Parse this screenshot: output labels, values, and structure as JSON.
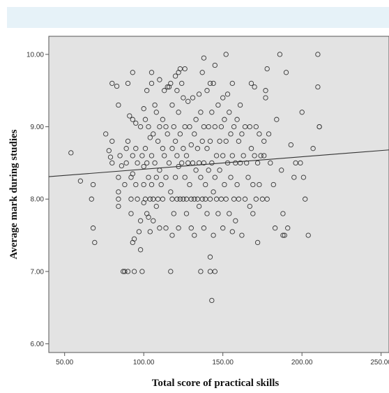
{
  "chart_data": {
    "type": "scatter",
    "title": "",
    "xlabel": "Total score of practical skills",
    "ylabel": "Average  mark during studies",
    "xlim": [
      40,
      255
    ],
    "ylim": [
      5.88,
      10.25
    ],
    "x_ticks": [
      50,
      100,
      150,
      200,
      250
    ],
    "x_tick_labels": [
      "50.00",
      "100.00",
      "150.00",
      "200.00",
      "250.00"
    ],
    "y_ticks": [
      6,
      7,
      8,
      9,
      10
    ],
    "y_tick_labels": [
      "6.00",
      "7.00",
      "8.00",
      "9.00",
      "10.00"
    ],
    "grid": false,
    "legend": "none",
    "colors": {
      "background": "#e3e3e3",
      "marker": "#333333",
      "fit_line": "#333333"
    },
    "fit_line": {
      "x": [
        40,
        255
      ],
      "y": [
        8.31,
        8.68
      ]
    },
    "points": [
      [
        54,
        8.64
      ],
      [
        60,
        8.25
      ],
      [
        67,
        8.0
      ],
      [
        68,
        8.2
      ],
      [
        68,
        7.6
      ],
      [
        69,
        7.4
      ],
      [
        76,
        8.9
      ],
      [
        78,
        8.67
      ],
      [
        79,
        8.58
      ],
      [
        80,
        9.6
      ],
      [
        80,
        8.5
      ],
      [
        80,
        8.8
      ],
      [
        83,
        9.56
      ],
      [
        84,
        9.3
      ],
      [
        84,
        8.3
      ],
      [
        84,
        8.1
      ],
      [
        84,
        8.0
      ],
      [
        84,
        7.9
      ],
      [
        85,
        8.6
      ],
      [
        86,
        8.46
      ],
      [
        87,
        7.0
      ],
      [
        88,
        8.2
      ],
      [
        88,
        7.0
      ],
      [
        89,
        8.7
      ],
      [
        89,
        8.5
      ],
      [
        90,
        9.6
      ],
      [
        90,
        8.8
      ],
      [
        90,
        7.0
      ],
      [
        91,
        9.15
      ],
      [
        92,
        8.3
      ],
      [
        92,
        8.0
      ],
      [
        92,
        7.8
      ],
      [
        93,
        9.75
      ],
      [
        93,
        9.1
      ],
      [
        93,
        8.6
      ],
      [
        93,
        8.35
      ],
      [
        93,
        7.4
      ],
      [
        94,
        7.45
      ],
      [
        94,
        7.0
      ],
      [
        95,
        9.05
      ],
      [
        95,
        8.7
      ],
      [
        95,
        8.2
      ],
      [
        96,
        8.5
      ],
      [
        96,
        8.0
      ],
      [
        97,
        7.55
      ],
      [
        98,
        9.0
      ],
      [
        98,
        7.7
      ],
      [
        98,
        7.3
      ],
      [
        99,
        8.6
      ],
      [
        99,
        7.0
      ],
      [
        100,
        9.25
      ],
      [
        100,
        8.45
      ],
      [
        100,
        8.2
      ],
      [
        100,
        7.95
      ],
      [
        101,
        9.1
      ],
      [
        101,
        8.7
      ],
      [
        101,
        8.0
      ],
      [
        102,
        9.5
      ],
      [
        102,
        8.5
      ],
      [
        102,
        7.8
      ],
      [
        103,
        9.0
      ],
      [
        103,
        8.3
      ],
      [
        103,
        7.75
      ],
      [
        104,
        8.85
      ],
      [
        104,
        8.0
      ],
      [
        104,
        7.55
      ],
      [
        105,
        9.75
      ],
      [
        105,
        9.6
      ],
      [
        105,
        8.6
      ],
      [
        105,
        8.2
      ],
      [
        106,
        8.9
      ],
      [
        106,
        8.0
      ],
      [
        106,
        7.7
      ],
      [
        107,
        9.3
      ],
      [
        107,
        8.5
      ],
      [
        108,
        9.2
      ],
      [
        108,
        8.3
      ],
      [
        108,
        7.9
      ],
      [
        109,
        8.8
      ],
      [
        109,
        8.0
      ],
      [
        110,
        9.65
      ],
      [
        110,
        9.0
      ],
      [
        110,
        8.4
      ],
      [
        110,
        7.6
      ],
      [
        111,
        8.2
      ],
      [
        112,
        9.1
      ],
      [
        112,
        8.7
      ],
      [
        112,
        8.0
      ],
      [
        113,
        9.5
      ],
      [
        113,
        8.6
      ],
      [
        114,
        9.0
      ],
      [
        114,
        8.3
      ],
      [
        114,
        7.6
      ],
      [
        115,
        9.55
      ],
      [
        115,
        8.9
      ],
      [
        116,
        9.55
      ],
      [
        116,
        8.5
      ],
      [
        117,
        9.6
      ],
      [
        117,
        8.1
      ],
      [
        117,
        7.0
      ],
      [
        118,
        9.3
      ],
      [
        118,
        8.7
      ],
      [
        118,
        8.0
      ],
      [
        118,
        7.5
      ],
      [
        119,
        9.0
      ],
      [
        119,
        7.8
      ],
      [
        120,
        9.7
      ],
      [
        120,
        8.8
      ],
      [
        120,
        8.3
      ],
      [
        121,
        9.5
      ],
      [
        121,
        8.6
      ],
      [
        121,
        8.0
      ],
      [
        122,
        9.75
      ],
      [
        122,
        9.2
      ],
      [
        122,
        8.45
      ],
      [
        122,
        7.6
      ],
      [
        123,
        9.8
      ],
      [
        123,
        8.9
      ],
      [
        123,
        8.0
      ],
      [
        124,
        9.6
      ],
      [
        124,
        8.5
      ],
      [
        125,
        9.4
      ],
      [
        125,
        8.7
      ],
      [
        125,
        8.0
      ],
      [
        126,
        9.8
      ],
      [
        126,
        9.0
      ],
      [
        126,
        8.3
      ],
      [
        127,
        8.6
      ],
      [
        127,
        8.0
      ],
      [
        127,
        7.8
      ],
      [
        128,
        9.35
      ],
      [
        128,
        8.5
      ],
      [
        129,
        9.0
      ],
      [
        129,
        8.2
      ],
      [
        130,
        8.75
      ],
      [
        130,
        8.0
      ],
      [
        130,
        7.6
      ],
      [
        131,
        9.4
      ],
      [
        131,
        8.5
      ],
      [
        132,
        8.9
      ],
      [
        132,
        8.0
      ],
      [
        132,
        7.5
      ],
      [
        133,
        9.1
      ],
      [
        133,
        8.4
      ],
      [
        134,
        8.7
      ],
      [
        134,
        8.0
      ],
      [
        135,
        9.45
      ],
      [
        135,
        8.5
      ],
      [
        135,
        7.9
      ],
      [
        136,
        9.2
      ],
      [
        136,
        8.3
      ],
      [
        136,
        7.0
      ],
      [
        137,
        9.75
      ],
      [
        137,
        8.8
      ],
      [
        137,
        8.0
      ],
      [
        138,
        9.95
      ],
      [
        138,
        9.0
      ],
      [
        138,
        8.5
      ],
      [
        138,
        7.6
      ],
      [
        139,
        8.2
      ],
      [
        139,
        8.0
      ],
      [
        140,
        9.5
      ],
      [
        140,
        8.7
      ],
      [
        140,
        7.8
      ],
      [
        141,
        9.0
      ],
      [
        141,
        8.4
      ],
      [
        142,
        9.6
      ],
      [
        142,
        8.8
      ],
      [
        142,
        8.0
      ],
      [
        142,
        7.2
      ],
      [
        142,
        7.0
      ],
      [
        143,
        6.6
      ],
      [
        143,
        9.2
      ],
      [
        143,
        8.5
      ],
      [
        144,
        9.6
      ],
      [
        144,
        8.1
      ],
      [
        144,
        7.5
      ],
      [
        145,
        9.85
      ],
      [
        145,
        9.0
      ],
      [
        145,
        8.3
      ],
      [
        145,
        7.0
      ],
      [
        146,
        8.6
      ],
      [
        146,
        8.0
      ],
      [
        147,
        9.3
      ],
      [
        147,
        7.8
      ],
      [
        148,
        8.8
      ],
      [
        148,
        8.4
      ],
      [
        149,
        9.0
      ],
      [
        149,
        8.0
      ],
      [
        150,
        9.4
      ],
      [
        150,
        8.6
      ],
      [
        150,
        7.6
      ],
      [
        151,
        9.1
      ],
      [
        151,
        8.2
      ],
      [
        152,
        10.0
      ],
      [
        152,
        8.8
      ],
      [
        152,
        8.0
      ],
      [
        153,
        9.45
      ],
      [
        153,
        8.5
      ],
      [
        154,
        9.2
      ],
      [
        154,
        7.8
      ],
      [
        155,
        8.9
      ],
      [
        155,
        8.3
      ],
      [
        156,
        9.6
      ],
      [
        156,
        8.6
      ],
      [
        156,
        7.55
      ],
      [
        157,
        9.0
      ],
      [
        157,
        8.0
      ],
      [
        158,
        8.5
      ],
      [
        158,
        7.7
      ],
      [
        159,
        9.1
      ],
      [
        159,
        8.2
      ],
      [
        160,
        8.8
      ],
      [
        160,
        8.0
      ],
      [
        161,
        9.3
      ],
      [
        161,
        8.5
      ],
      [
        162,
        8.9
      ],
      [
        162,
        7.5
      ],
      [
        163,
        8.6
      ],
      [
        164,
        9.0
      ],
      [
        164,
        8.0
      ],
      [
        165,
        8.5
      ],
      [
        166,
        8.3
      ],
      [
        167,
        9.0
      ],
      [
        167,
        7.9
      ],
      [
        168,
        9.6
      ],
      [
        168,
        8.7
      ],
      [
        169,
        8.2
      ],
      [
        169,
        7.8
      ],
      [
        170,
        9.55
      ],
      [
        170,
        8.6
      ],
      [
        171,
        9.0
      ],
      [
        171,
        8.0
      ],
      [
        172,
        8.5
      ],
      [
        172,
        7.4
      ],
      [
        173,
        8.9
      ],
      [
        173,
        8.2
      ],
      [
        174,
        8.6
      ],
      [
        175,
        8.0
      ],
      [
        176,
        8.8
      ],
      [
        176,
        8.6
      ],
      [
        177,
        9.5
      ],
      [
        177,
        9.4
      ],
      [
        178,
        9.8
      ],
      [
        178,
        8.0
      ],
      [
        179,
        8.9
      ],
      [
        180,
        8.5
      ],
      [
        182,
        8.2
      ],
      [
        183,
        7.6
      ],
      [
        184,
        9.1
      ],
      [
        186,
        10.0
      ],
      [
        187,
        8.4
      ],
      [
        188,
        7.8
      ],
      [
        188,
        7.5
      ],
      [
        189,
        7.5
      ],
      [
        190,
        9.75
      ],
      [
        191,
        7.6
      ],
      [
        193,
        8.75
      ],
      [
        195,
        8.3
      ],
      [
        196,
        8.5
      ],
      [
        199,
        8.5
      ],
      [
        200,
        9.2
      ],
      [
        201,
        8.3
      ],
      [
        202,
        8.0
      ],
      [
        204,
        7.5
      ],
      [
        207,
        8.7
      ],
      [
        210,
        10.0
      ],
      [
        210,
        9.55
      ],
      [
        211,
        9.0
      ],
      [
        211,
        9.0
      ]
    ]
  }
}
